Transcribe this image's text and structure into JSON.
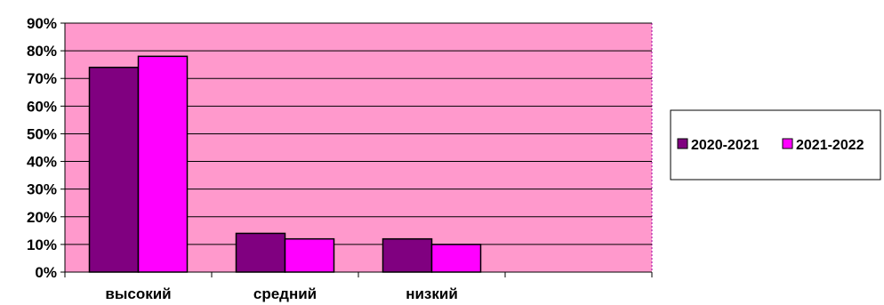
{
  "chart_data": {
    "type": "bar",
    "title": "",
    "xlabel": "",
    "ylabel": "",
    "categories": [
      "высокий",
      "средний",
      "низкий",
      ""
    ],
    "series": [
      {
        "name": "2020-2021",
        "values": [
          0.74,
          0.14,
          0.12,
          null
        ],
        "color": "#800080"
      },
      {
        "name": "2021-2022",
        "values": [
          0.78,
          0.12,
          0.1,
          null
        ],
        "color": "#FF00FF"
      }
    ],
    "ylim": [
      0,
      0.9
    ],
    "yticks": [
      "0%",
      "10%",
      "20%",
      "30%",
      "40%",
      "50%",
      "60%",
      "70%",
      "80%",
      "90%"
    ],
    "grid": true,
    "legend_position": "right",
    "plot_background": "#FF99CC"
  }
}
